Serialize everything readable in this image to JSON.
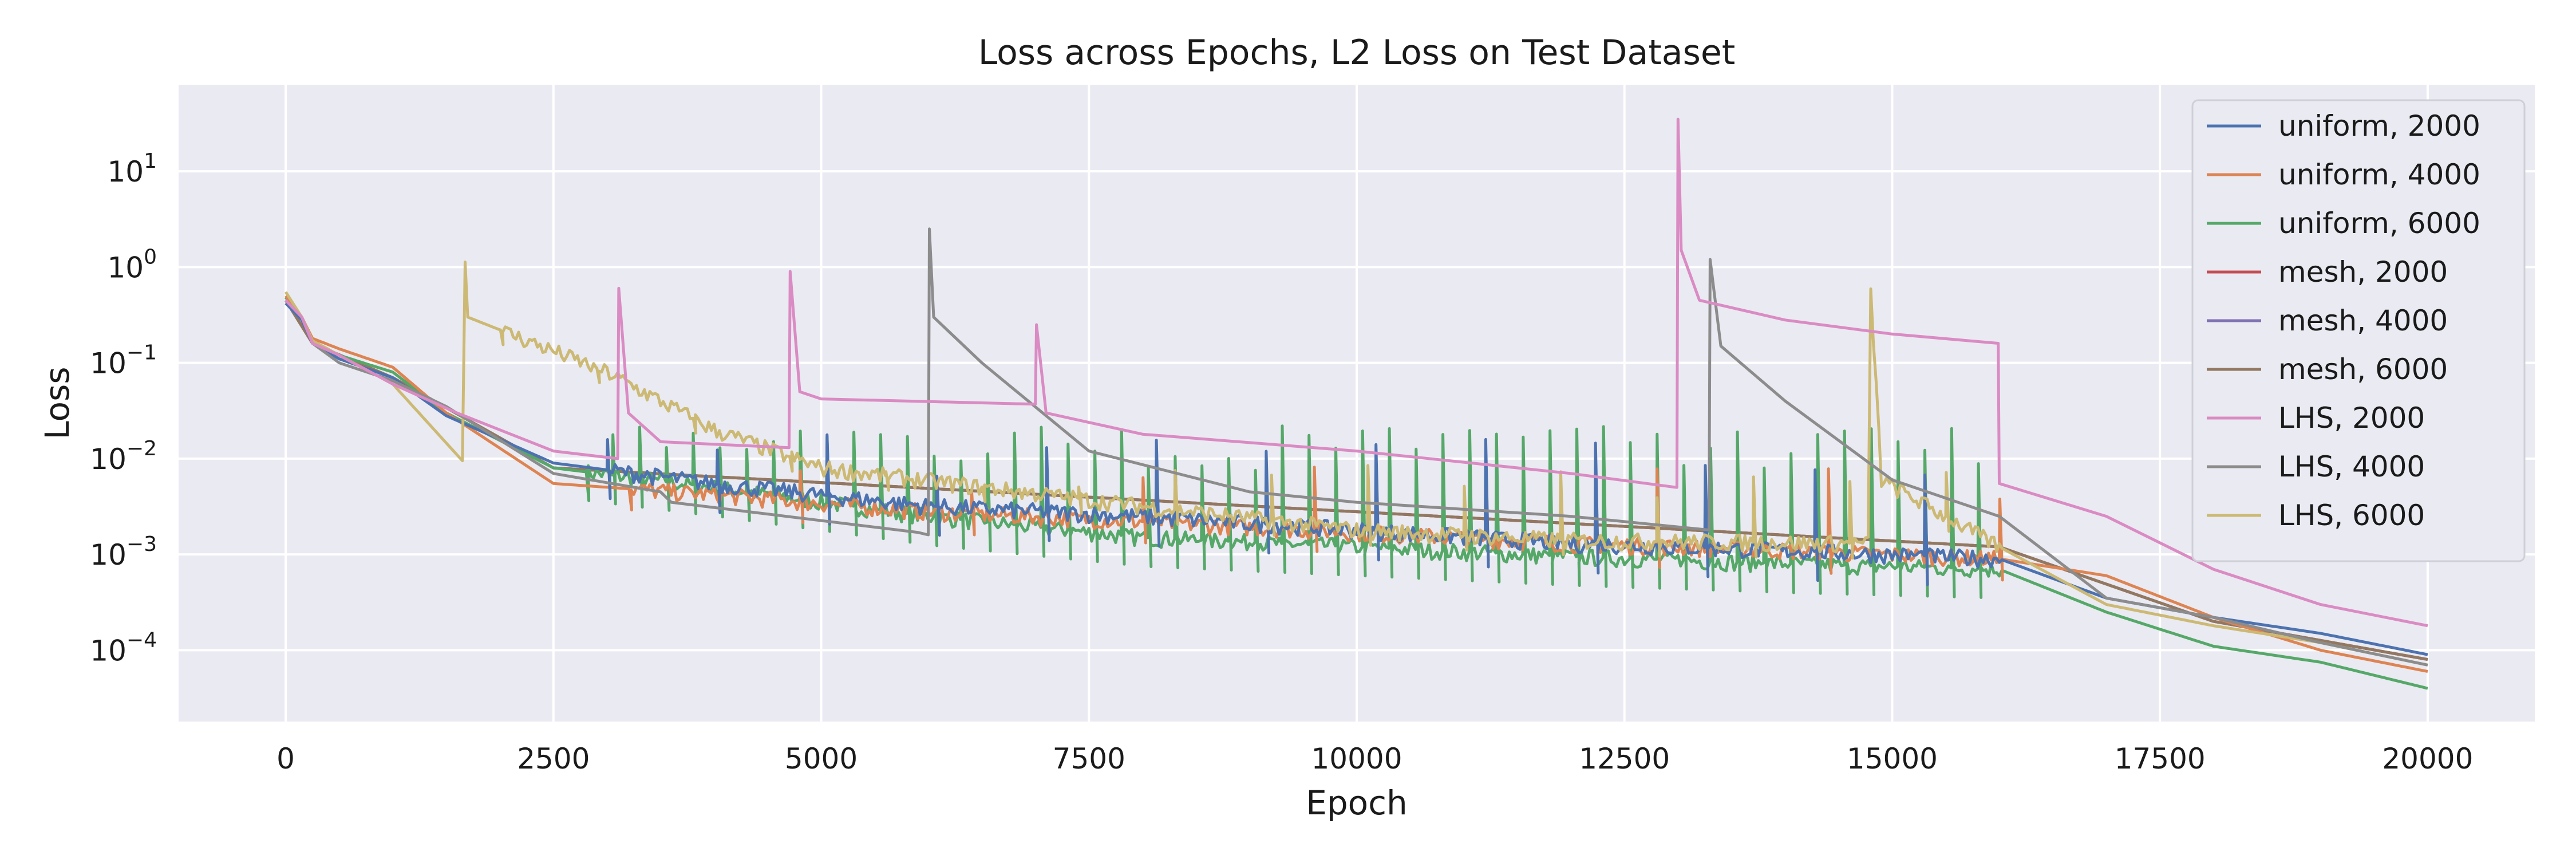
{
  "chart_data": {
    "type": "line",
    "title": "Loss across Epochs, L2 Loss on Test Dataset",
    "xlabel": "Epoch",
    "ylabel": "Loss",
    "xlim": [
      -1000,
      21000
    ],
    "ylim": [
      1.8e-05,
      80
    ],
    "yscale": "log",
    "x_ticks": [
      {
        "v": 0,
        "label": "0"
      },
      {
        "v": 2500,
        "label": "2500"
      },
      {
        "v": 5000,
        "label": "5000"
      },
      {
        "v": 7500,
        "label": "7500"
      },
      {
        "v": 10000,
        "label": "10000"
      },
      {
        "v": 12500,
        "label": "12500"
      },
      {
        "v": 15000,
        "label": "15000"
      },
      {
        "v": 17500,
        "label": "17500"
      },
      {
        "v": 20000,
        "label": "20000"
      }
    ],
    "y_ticks": [
      {
        "v": 0.0001,
        "base": "10",
        "exp": "−4"
      },
      {
        "v": 0.001,
        "base": "10",
        "exp": "−3"
      },
      {
        "v": 0.01,
        "base": "10",
        "exp": "−2"
      },
      {
        "v": 0.1,
        "base": "10",
        "exp": "−1"
      },
      {
        "v": 1,
        "base": "10",
        "exp": "0"
      },
      {
        "v": 10,
        "base": "10",
        "exp": "1"
      }
    ],
    "grid": true,
    "legend_position": "top-right",
    "background": "#eaeaf2",
    "series": [
      {
        "name": "uniform, 2000",
        "color": "#4c72b0",
        "points": [
          [
            0,
            0.42
          ],
          [
            150,
            0.28
          ],
          [
            250,
            0.16
          ],
          [
            500,
            0.11
          ],
          [
            1000,
            0.07
          ],
          [
            1500,
            0.028
          ],
          [
            2500,
            0.009
          ],
          [
            4000,
            0.0055
          ],
          [
            6000,
            0.0032
          ],
          [
            8000,
            0.0025
          ],
          [
            10000,
            0.0018
          ],
          [
            12000,
            0.0013
          ],
          [
            14000,
            0.0011
          ],
          [
            16000,
            0.0009
          ],
          [
            17000,
            0.00035
          ],
          [
            18000,
            0.00022
          ],
          [
            19000,
            0.00015
          ],
          [
            20000,
            9e-05
          ]
        ],
        "spikes": {
          "start": 3000,
          "end": 16000,
          "step": 205,
          "peak": 0.012,
          "dip": 0.5
        }
      },
      {
        "name": "uniform, 4000",
        "color": "#dd8452",
        "points": [
          [
            0,
            0.5
          ],
          [
            150,
            0.3
          ],
          [
            250,
            0.18
          ],
          [
            500,
            0.14
          ],
          [
            1000,
            0.09
          ],
          [
            1500,
            0.03
          ],
          [
            2500,
            0.0055
          ],
          [
            4000,
            0.0042
          ],
          [
            6000,
            0.0028
          ],
          [
            8000,
            0.0022
          ],
          [
            10000,
            0.0017
          ],
          [
            12000,
            0.0013
          ],
          [
            14000,
            0.0011
          ],
          [
            16000,
            0.0009
          ],
          [
            17000,
            0.0006
          ],
          [
            18000,
            0.00022
          ],
          [
            19000,
            0.0001
          ],
          [
            20000,
            6e-05
          ]
        ],
        "spikes": {
          "start": 3200,
          "end": 16000,
          "step": 320,
          "peak": 0.007,
          "dip": 0.6
        }
      },
      {
        "name": "uniform, 6000",
        "color": "#55a868",
        "points": [
          [
            0,
            0.48
          ],
          [
            150,
            0.3
          ],
          [
            250,
            0.17
          ],
          [
            500,
            0.12
          ],
          [
            1000,
            0.08
          ],
          [
            1500,
            0.03
          ],
          [
            2500,
            0.008
          ],
          [
            4000,
            0.005
          ],
          [
            6000,
            0.0025
          ],
          [
            8000,
            0.0015
          ],
          [
            10000,
            0.0012
          ],
          [
            12000,
            0.00095
          ],
          [
            14000,
            0.0008
          ],
          [
            16000,
            0.0007
          ],
          [
            17000,
            0.00025
          ],
          [
            18000,
            0.00011
          ],
          [
            19000,
            7.5e-05
          ],
          [
            20000,
            4e-05
          ]
        ],
        "spikes": {
          "start": 2800,
          "end": 16000,
          "step": 250,
          "peak": 0.015,
          "dip": 0.5
        }
      },
      {
        "name": "mesh, 2000",
        "color": "#c44e52",
        "points": [
          [
            0,
            0.45
          ],
          [
            250,
            0.16
          ],
          [
            1000,
            0.07
          ],
          [
            2500,
            0.008
          ],
          [
            16000,
            0.0012
          ],
          [
            18000,
            0.0002
          ],
          [
            20000,
            8e-05
          ]
        ],
        "spikes": null
      },
      {
        "name": "mesh, 4000",
        "color": "#8172b3",
        "points": [
          [
            0,
            0.45
          ],
          [
            250,
            0.16
          ],
          [
            1000,
            0.07
          ],
          [
            2500,
            0.008
          ],
          [
            16000,
            0.0012
          ],
          [
            18000,
            0.0002
          ],
          [
            20000,
            8e-05
          ]
        ],
        "spikes": null
      },
      {
        "name": "mesh, 6000",
        "color": "#937860",
        "points": [
          [
            0,
            0.45
          ],
          [
            250,
            0.16
          ],
          [
            1000,
            0.07
          ],
          [
            2500,
            0.008
          ],
          [
            16000,
            0.0012
          ],
          [
            18000,
            0.0002
          ],
          [
            20000,
            8e-05
          ]
        ],
        "spikes": null
      },
      {
        "name": "LHS, 2000",
        "color": "#da8bc3",
        "points": [
          [
            0,
            0.45
          ],
          [
            150,
            0.3
          ],
          [
            250,
            0.16
          ],
          [
            500,
            0.12
          ],
          [
            1000,
            0.06
          ],
          [
            1600,
            0.03
          ],
          [
            2500,
            0.012
          ],
          [
            3100,
            0.01
          ],
          [
            3110,
            0.6
          ],
          [
            3200,
            0.03
          ],
          [
            3500,
            0.015
          ],
          [
            4700,
            0.013
          ],
          [
            4710,
            0.9
          ],
          [
            4800,
            0.05
          ],
          [
            5000,
            0.042
          ],
          [
            7000,
            0.037
          ],
          [
            7010,
            0.25
          ],
          [
            7100,
            0.03
          ],
          [
            8000,
            0.018
          ],
          [
            10000,
            0.012
          ],
          [
            12000,
            0.007
          ],
          [
            12990,
            0.005
          ],
          [
            13000,
            35
          ],
          [
            13030,
            1.5
          ],
          [
            13200,
            0.45
          ],
          [
            14000,
            0.28
          ],
          [
            15000,
            0.2
          ],
          [
            15990,
            0.16
          ],
          [
            16000,
            0.0055
          ],
          [
            17000,
            0.0025
          ],
          [
            18000,
            0.0007
          ],
          [
            19000,
            0.0003
          ],
          [
            20000,
            0.00018
          ]
        ],
        "spikes": null
      },
      {
        "name": "LHS, 4000",
        "color": "#8c8c8c",
        "points": [
          [
            0,
            0.45
          ],
          [
            150,
            0.3
          ],
          [
            250,
            0.16
          ],
          [
            500,
            0.1
          ],
          [
            1000,
            0.065
          ],
          [
            1500,
            0.035
          ],
          [
            2500,
            0.007
          ],
          [
            3500,
            0.0045
          ],
          [
            3600,
            0.0035
          ],
          [
            5900,
            0.0017
          ],
          [
            6000,
            0.0016
          ],
          [
            6010,
            2.5
          ],
          [
            6050,
            0.3
          ],
          [
            6500,
            0.1
          ],
          [
            7500,
            0.012
          ],
          [
            9000,
            0.0045
          ],
          [
            10000,
            0.0035
          ],
          [
            12000,
            0.0025
          ],
          [
            13290,
            0.0018
          ],
          [
            13300,
            1.2
          ],
          [
            13400,
            0.15
          ],
          [
            14000,
            0.04
          ],
          [
            15000,
            0.006
          ],
          [
            16000,
            0.0025
          ],
          [
            17000,
            0.00035
          ],
          [
            18000,
            0.00022
          ],
          [
            19000,
            0.00012
          ],
          [
            20000,
            7e-05
          ]
        ],
        "spikes": null
      },
      {
        "name": "LHS, 6000",
        "color": "#ccb974",
        "points": [
          [
            0,
            0.55
          ],
          [
            150,
            0.3
          ],
          [
            250,
            0.17
          ],
          [
            500,
            0.12
          ],
          [
            1000,
            0.06
          ],
          [
            1650,
            0.0095
          ],
          [
            1660,
            2.5
          ],
          [
            1700,
            0.3
          ],
          [
            3000,
            0.08
          ],
          [
            4000,
            0.02
          ],
          [
            5000,
            0.008
          ],
          [
            8000,
            0.0032
          ],
          [
            10000,
            0.0018
          ],
          [
            12000,
            0.0014
          ],
          [
            14790,
            0.0013
          ],
          [
            14800,
            0.55
          ],
          [
            14900,
            0.006
          ],
          [
            16000,
            0.0012
          ],
          [
            17000,
            0.0003
          ],
          [
            18000,
            0.00018
          ],
          [
            19000,
            0.00012
          ],
          [
            20000,
            7e-05
          ]
        ],
        "spikes": {
          "start": 2000,
          "end": 16000,
          "step": 180,
          "peak": 0.006,
          "dip": 0.7
        }
      }
    ]
  }
}
